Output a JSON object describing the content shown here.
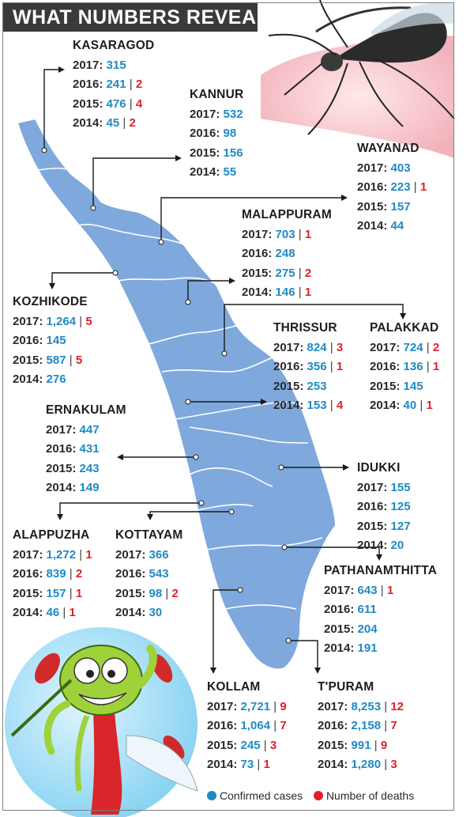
{
  "title": "WHAT NUMBERS REVEAL",
  "colors": {
    "cases": "#1f8ac3",
    "deaths": "#e0202a",
    "map_fill": "#7fa9dd"
  },
  "legend": {
    "cases": "Confirmed cases",
    "deaths": "Number of deaths"
  },
  "districts": [
    {
      "name": "KASARAGOD",
      "rows": [
        {
          "year": "2017:",
          "cases": "315",
          "deaths": ""
        },
        {
          "year": "2016:",
          "cases": "241",
          "deaths": "2"
        },
        {
          "year": "2015:",
          "cases": "476",
          "deaths": "4"
        },
        {
          "year": "2014:",
          "cases": "45",
          "deaths": "2"
        }
      ]
    },
    {
      "name": "KANNUR",
      "rows": [
        {
          "year": "2017:",
          "cases": "532",
          "deaths": ""
        },
        {
          "year": "2016:",
          "cases": "98",
          "deaths": ""
        },
        {
          "year": "2015:",
          "cases": "156",
          "deaths": ""
        },
        {
          "year": "2014:",
          "cases": "55",
          "deaths": ""
        }
      ]
    },
    {
      "name": "WAYANAD",
      "rows": [
        {
          "year": "2017:",
          "cases": "403",
          "deaths": ""
        },
        {
          "year": "2016:",
          "cases": "223",
          "deaths": "1"
        },
        {
          "year": "2015:",
          "cases": "157",
          "deaths": ""
        },
        {
          "year": "2014:",
          "cases": "44",
          "deaths": ""
        }
      ]
    },
    {
      "name": "MALAPPURAM",
      "rows": [
        {
          "year": "2017:",
          "cases": "703",
          "deaths": "1"
        },
        {
          "year": "2016:",
          "cases": "248",
          "deaths": ""
        },
        {
          "year": "2015:",
          "cases": "275",
          "deaths": "2"
        },
        {
          "year": "2014:",
          "cases": "146",
          "deaths": "1"
        }
      ]
    },
    {
      "name": "KOZHIKODE",
      "rows": [
        {
          "year": "2017:",
          "cases": "1,264",
          "deaths": "5"
        },
        {
          "year": "2016:",
          "cases": "145",
          "deaths": ""
        },
        {
          "year": "2015:",
          "cases": "587",
          "deaths": "5"
        },
        {
          "year": "2014:",
          "cases": "276",
          "deaths": ""
        }
      ]
    },
    {
      "name": "THRISSUR",
      "rows": [
        {
          "year": "2017:",
          "cases": "824",
          "deaths": "3"
        },
        {
          "year": "2016:",
          "cases": "356",
          "deaths": "1"
        },
        {
          "year": "2015:",
          "cases": "253",
          "deaths": ""
        },
        {
          "year": "2014:",
          "cases": "153",
          "deaths": "4"
        }
      ]
    },
    {
      "name": "PALAKKAD",
      "rows": [
        {
          "year": "2017:",
          "cases": "724",
          "deaths": "2"
        },
        {
          "year": "2016:",
          "cases": "136",
          "deaths": "1"
        },
        {
          "year": "2015:",
          "cases": "145",
          "deaths": ""
        },
        {
          "year": "2014:",
          "cases": "40",
          "deaths": "1"
        }
      ]
    },
    {
      "name": "ERNAKULAM",
      "rows": [
        {
          "year": "2017:",
          "cases": "447",
          "deaths": ""
        },
        {
          "year": "2016:",
          "cases": "431",
          "deaths": ""
        },
        {
          "year": "2015:",
          "cases": "243",
          "deaths": ""
        },
        {
          "year": "2014:",
          "cases": "149",
          "deaths": ""
        }
      ]
    },
    {
      "name": "IDUKKI",
      "rows": [
        {
          "year": "2017:",
          "cases": "155",
          "deaths": ""
        },
        {
          "year": "2016:",
          "cases": "125",
          "deaths": ""
        },
        {
          "year": "2015:",
          "cases": "127",
          "deaths": ""
        },
        {
          "year": "2014:",
          "cases": "20",
          "deaths": ""
        }
      ]
    },
    {
      "name": "ALAPPUZHA",
      "rows": [
        {
          "year": "2017:",
          "cases": "1,272",
          "deaths": "1"
        },
        {
          "year": "2016:",
          "cases": "839",
          "deaths": "2"
        },
        {
          "year": "2015:",
          "cases": "157",
          "deaths": "1"
        },
        {
          "year": "2014:",
          "cases": "46",
          "deaths": "1"
        }
      ]
    },
    {
      "name": "KOTTAYAM",
      "rows": [
        {
          "year": "2017:",
          "cases": "366",
          "deaths": ""
        },
        {
          "year": "2016:",
          "cases": "543",
          "deaths": ""
        },
        {
          "year": "2015:",
          "cases": "98",
          "deaths": "2"
        },
        {
          "year": "2014:",
          "cases": "30",
          "deaths": ""
        }
      ]
    },
    {
      "name": "PATHANAMTHITTA",
      "rows": [
        {
          "year": "2017:",
          "cases": "643",
          "deaths": "1"
        },
        {
          "year": "2016:",
          "cases": "611",
          "deaths": ""
        },
        {
          "year": "2015:",
          "cases": "204",
          "deaths": ""
        },
        {
          "year": "2014:",
          "cases": "191",
          "deaths": ""
        }
      ]
    },
    {
      "name": "KOLLAM",
      "rows": [
        {
          "year": "2017:",
          "cases": "2,721",
          "deaths": "9"
        },
        {
          "year": "2016:",
          "cases": "1,064",
          "deaths": "7"
        },
        {
          "year": "2015:",
          "cases": "245",
          "deaths": "3"
        },
        {
          "year": "2014:",
          "cases": "73",
          "deaths": "1"
        }
      ]
    },
    {
      "name": "T'PURAM",
      "rows": [
        {
          "year": "2017:",
          "cases": "8,253",
          "deaths": "12"
        },
        {
          "year": "2016:",
          "cases": "2,158",
          "deaths": "7"
        },
        {
          "year": "2015:",
          "cases": "991",
          "deaths": "9"
        },
        {
          "year": "2014:",
          "cases": "1,280",
          "deaths": "3"
        }
      ]
    }
  ]
}
